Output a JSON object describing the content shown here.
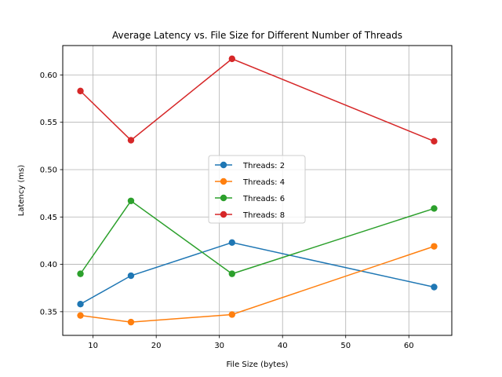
{
  "chart_data": {
    "type": "line",
    "title": "Average Latency vs. File Size for Different Number of Threads",
    "xlabel": "File Size (bytes)",
    "ylabel": "Latency (ms)",
    "xlim": [
      5.2,
      66.8
    ],
    "ylim": [
      0.325,
      0.631
    ],
    "xticks": [
      10,
      20,
      30,
      40,
      50,
      60
    ],
    "yticks": [
      0.35,
      0.4,
      0.45,
      0.5,
      0.55,
      0.6
    ],
    "ytick_labels": [
      "0.35",
      "0.40",
      "0.45",
      "0.50",
      "0.55",
      "0.60"
    ],
    "grid": true,
    "legend_position": "center",
    "x": [
      8,
      16,
      32,
      64
    ],
    "series": [
      {
        "name": "Threads: 2",
        "color": "#1f77b4",
        "values": [
          0.358,
          0.388,
          0.423,
          0.376
        ]
      },
      {
        "name": "Threads: 4",
        "color": "#ff7f0e",
        "values": [
          0.346,
          0.339,
          0.347,
          0.419
        ]
      },
      {
        "name": "Threads: 6",
        "color": "#2ca02c",
        "values": [
          0.39,
          0.467,
          0.39,
          0.459
        ]
      },
      {
        "name": "Threads: 8",
        "color": "#d62728",
        "values": [
          0.583,
          0.531,
          0.617,
          0.53
        ]
      }
    ]
  }
}
